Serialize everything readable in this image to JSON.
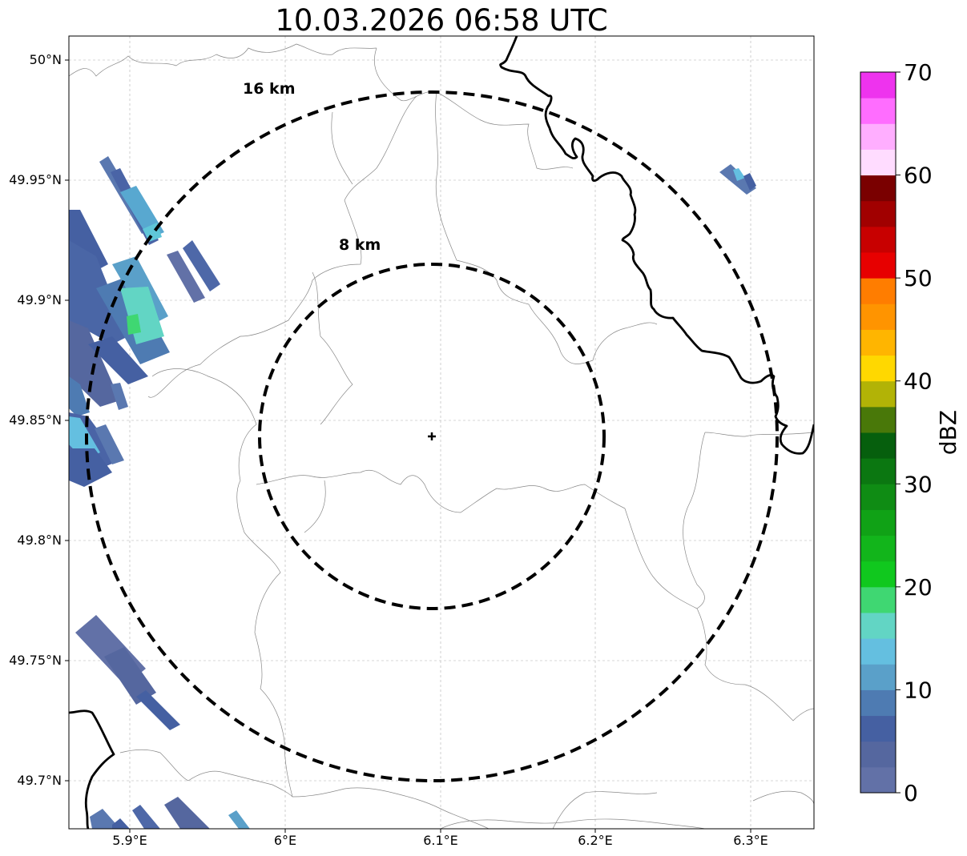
{
  "title": "10.03.2026 06:58 UTC",
  "map": {
    "x_ticks": [
      "5.9°E",
      "6°E",
      "6.1°E",
      "6.2°E",
      "6.3°E"
    ],
    "y_ticks": [
      "50°N",
      "49.95°N",
      "49.9°N",
      "49.85°N",
      "49.8°N",
      "49.75°N",
      "49.7°N"
    ],
    "range_rings": [
      {
        "label": "16 km",
        "radius_km": 16
      },
      {
        "label": "8 km",
        "radius_km": 8
      }
    ],
    "radar_center": {
      "lon": 6.095,
      "lat": 49.843
    },
    "extent": {
      "lon_min": 5.86,
      "lon_max": 6.34,
      "lat_min": 49.68,
      "lat_max": 50.01
    },
    "gridlines": true
  },
  "colorbar": {
    "label": "dBZ",
    "ticks": [
      "0",
      "10",
      "20",
      "30",
      "40",
      "50",
      "60",
      "70"
    ],
    "min": 0,
    "max": 70,
    "step": 2.5,
    "colors": [
      "#6271a7",
      "#55679f",
      "#4560a2",
      "#4e7bb2",
      "#5aa0c9",
      "#64bfe0",
      "#62d5c4",
      "#3fd772",
      "#10c81e",
      "#12b51b",
      "#10a216",
      "#0f8c14",
      "#0b7711",
      "#065f0d",
      "#497809",
      "#b2b306",
      "#ffd800",
      "#ffb500",
      "#ff9400",
      "#ff7d00",
      "#e70000",
      "#c80000",
      "#a10000",
      "#7a0000",
      "#ffdcff",
      "#ffaeff",
      "#ff6dff",
      "#ee33ee"
    ]
  }
}
